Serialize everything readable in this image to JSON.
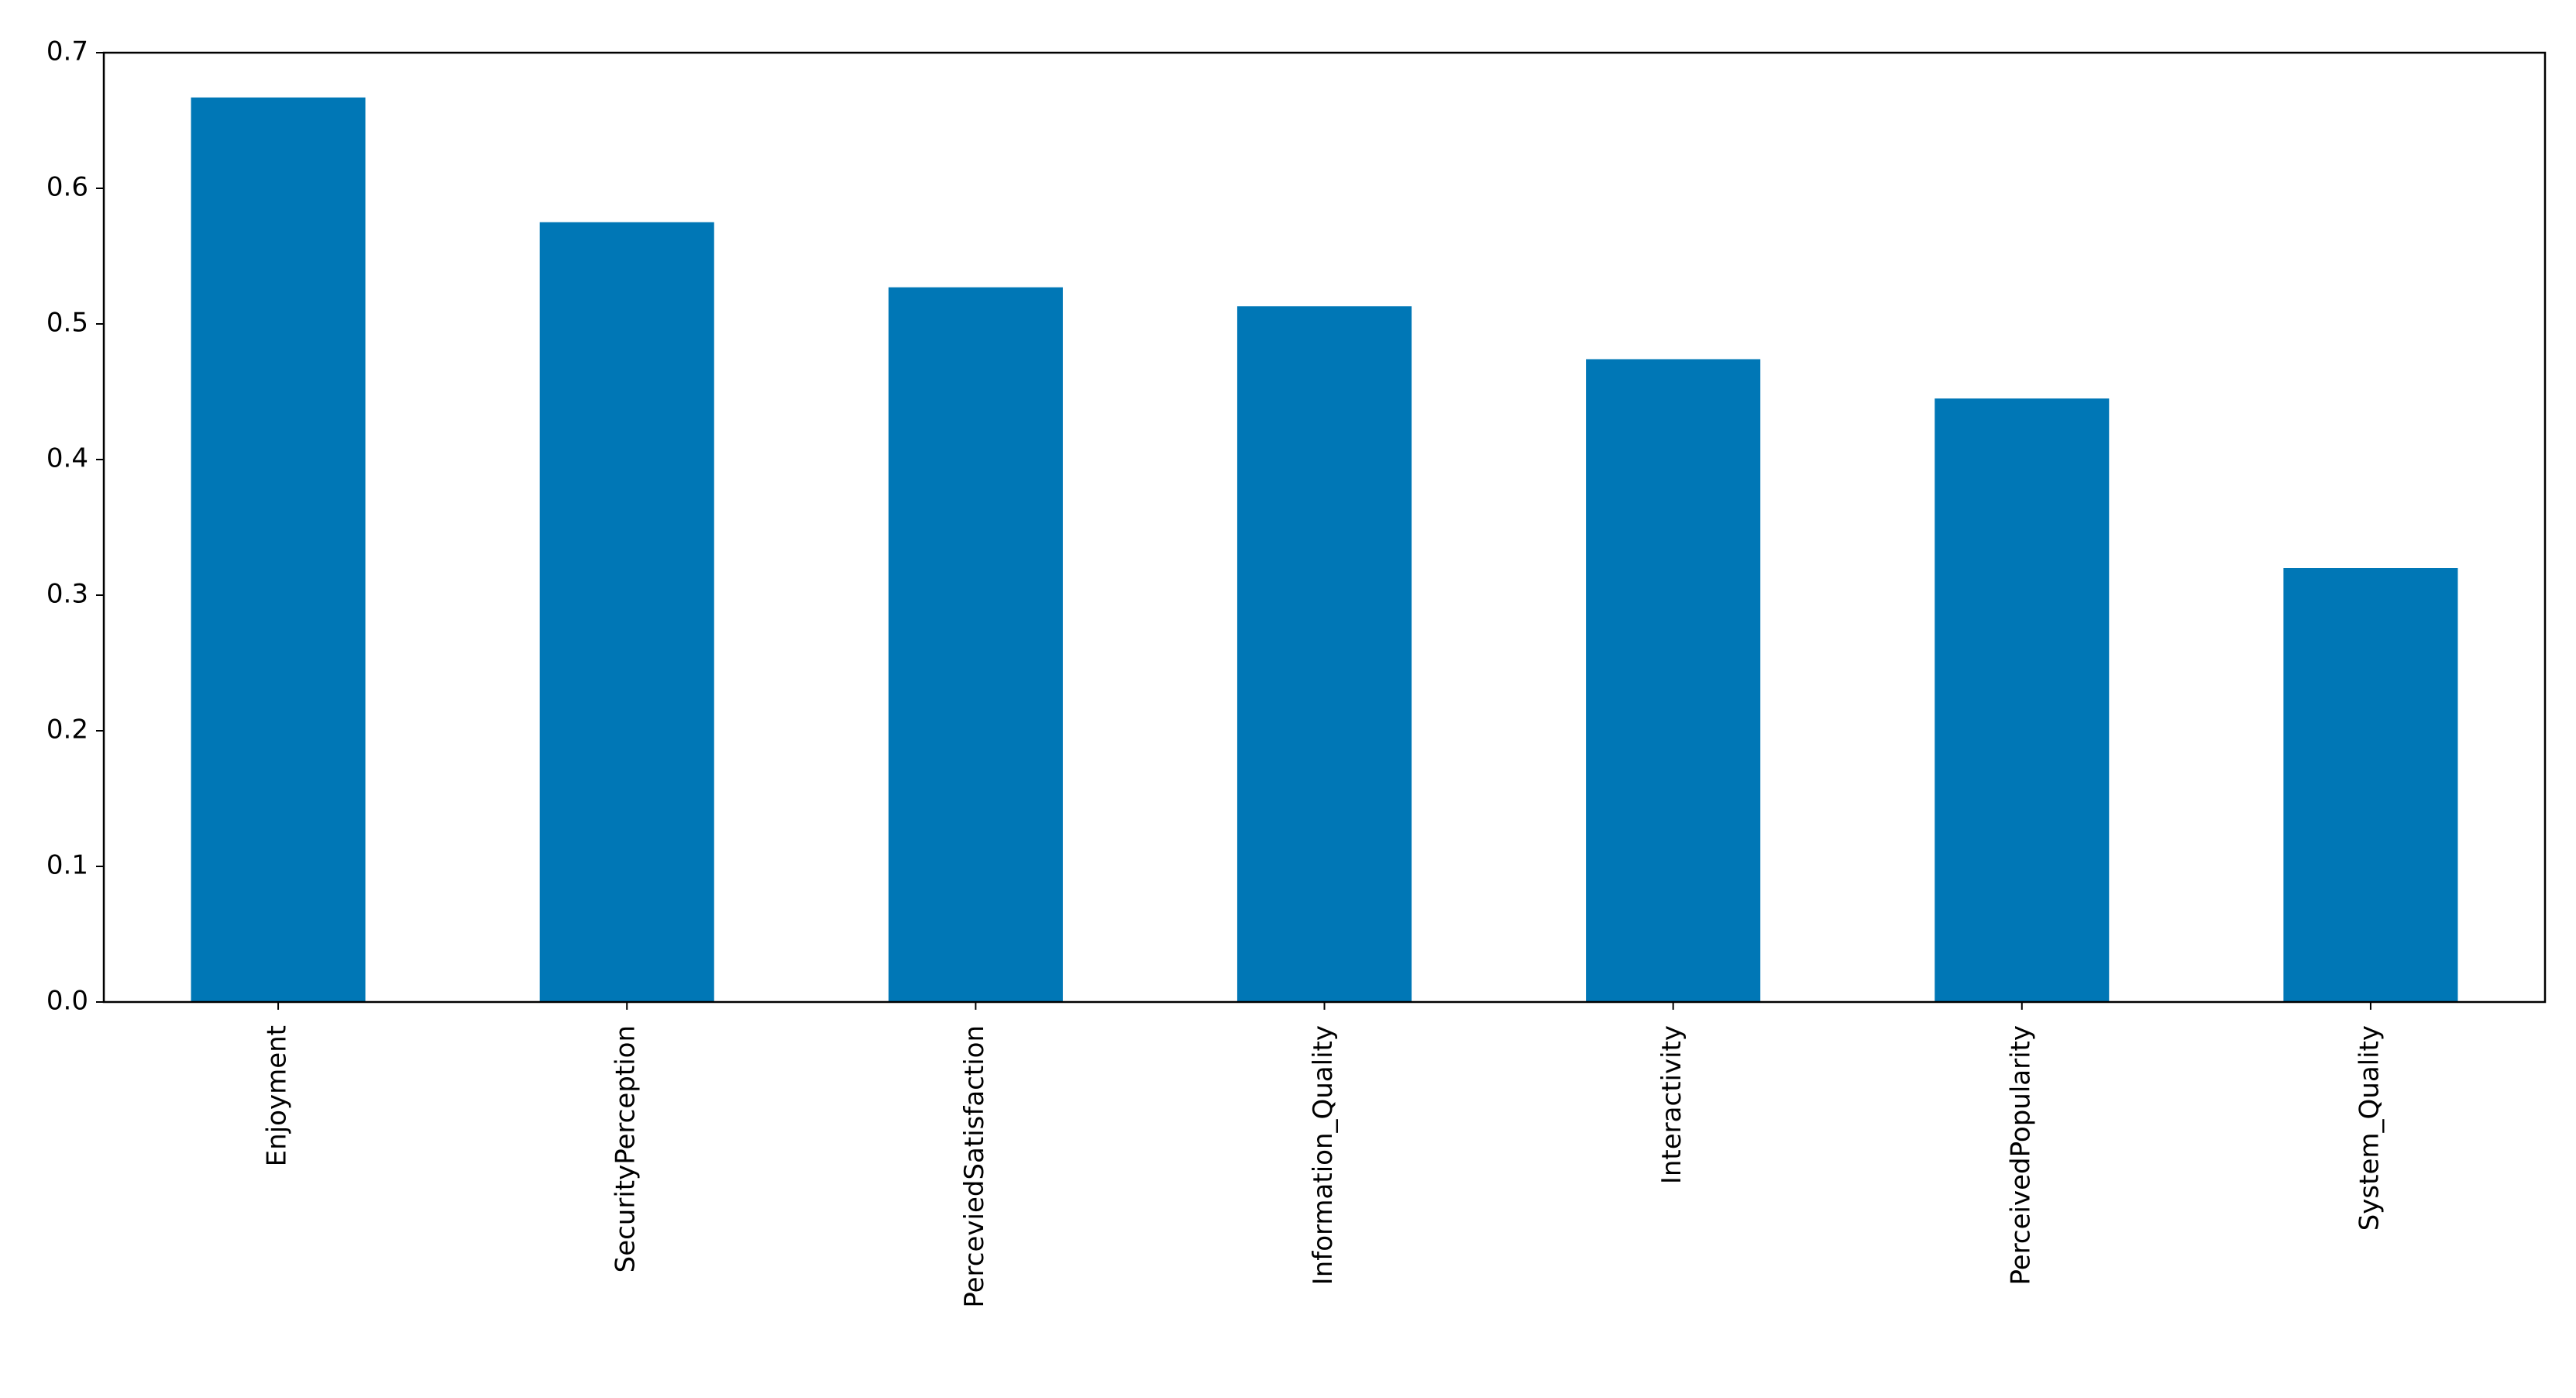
{
  "chart_data": {
    "type": "bar",
    "categories": [
      "Enjoyment",
      "SecurityPerception",
      "PerceviedSatisfaction",
      "Information_Quality",
      "Interactivity",
      "PerceivedPopularity",
      "System_Quality"
    ],
    "values": [
      0.667,
      0.575,
      0.527,
      0.513,
      0.474,
      0.445,
      0.32
    ],
    "color": "#0077b6",
    "ylim": [
      0,
      0.7
    ],
    "yticks": [
      {
        "value": 0,
        "label": "0.0"
      },
      0.1,
      0.2,
      0.3,
      0.4,
      0.5,
      0.6,
      0.7
    ],
    "grid": false
  }
}
